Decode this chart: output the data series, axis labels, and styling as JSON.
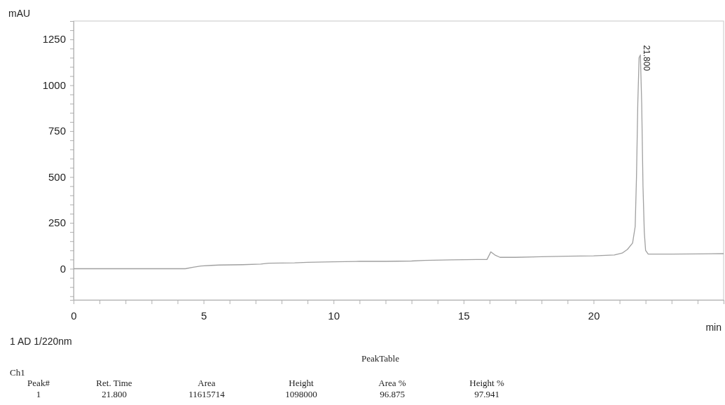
{
  "chart_data": {
    "type": "line",
    "xlabel": "min",
    "ylabel": "mAU",
    "xlim": [
      0,
      25
    ],
    "ylim": [
      -170,
      1350
    ],
    "xticks": [
      0,
      {
        "value": 1,
        "label": null
      },
      {
        "value": 2,
        "label": null
      },
      {
        "value": 3,
        "label": null
      },
      {
        "value": 4,
        "label": null
      },
      5,
      {
        "value": 6,
        "label": null
      },
      {
        "value": 7,
        "label": null
      },
      {
        "value": 8,
        "label": null
      },
      {
        "value": 9,
        "label": null
      },
      10,
      {
        "value": 11,
        "label": null
      },
      {
        "value": 12,
        "label": null
      },
      {
        "value": 13,
        "label": null
      },
      {
        "value": 14,
        "label": null
      },
      15,
      {
        "value": 16,
        "label": null
      },
      {
        "value": 17,
        "label": null
      },
      {
        "value": 18,
        "label": null
      },
      {
        "value": 19,
        "label": null
      },
      20,
      {
        "value": 21,
        "label": null
      },
      {
        "value": 22,
        "label": null
      },
      {
        "value": 23,
        "label": null
      },
      {
        "value": 24,
        "label": null
      },
      {
        "value": 25,
        "label": null
      }
    ],
    "yticks": [
      {
        "value": -150,
        "label": null
      },
      {
        "value": -100,
        "label": null
      },
      {
        "value": -50,
        "label": null
      },
      0,
      {
        "value": 50,
        "label": null
      },
      {
        "value": 100,
        "label": null
      },
      {
        "value": 150,
        "label": null
      },
      {
        "value": 200,
        "label": null
      },
      250,
      {
        "value": 300,
        "label": null
      },
      {
        "value": 350,
        "label": null
      },
      {
        "value": 400,
        "label": null
      },
      {
        "value": 450,
        "label": null
      },
      500,
      {
        "value": 550,
        "label": null
      },
      {
        "value": 600,
        "label": null
      },
      {
        "value": 650,
        "label": null
      },
      {
        "value": 700,
        "label": null
      },
      750,
      {
        "value": 800,
        "label": null
      },
      {
        "value": 850,
        "label": null
      },
      {
        "value": 900,
        "label": null
      },
      {
        "value": 950,
        "label": null
      },
      1000,
      {
        "value": 1050,
        "label": null
      },
      {
        "value": 1100,
        "label": null
      },
      {
        "value": 1150,
        "label": null
      },
      {
        "value": 1200,
        "label": null
      },
      1250,
      {
        "value": 1300,
        "label": null
      }
    ],
    "grid": false,
    "marker": "none",
    "line_style": "solid",
    "series": [
      {
        "color": "#a0a0a0",
        "x": [
          0,
          2,
          4,
          4.3,
          4.6,
          4.9,
          5.3,
          5.6,
          6.5,
          7.2,
          7.5,
          8.5,
          9,
          10,
          11,
          12,
          13,
          13.5,
          14.5,
          15.5,
          15.9,
          16.05,
          16.2,
          16.4,
          17,
          18,
          19,
          20,
          20.8,
          21.1,
          21.3,
          21.5,
          21.6,
          21.65,
          21.7,
          21.75,
          21.8,
          21.85,
          21.9,
          21.95,
          22,
          22.1,
          23,
          24,
          25
        ],
        "values": [
          0,
          0,
          0,
          0,
          8,
          15,
          18,
          20,
          22,
          25,
          30,
          32,
          35,
          38,
          40,
          40,
          42,
          45,
          48,
          50,
          50,
          92,
          75,
          62,
          62,
          65,
          68,
          70,
          75,
          85,
          105,
          140,
          230,
          500,
          900,
          1150,
          1165,
          900,
          450,
          200,
          100,
          80,
          80,
          81,
          82
        ]
      }
    ],
    "annotations": [
      {
        "text": "21.800",
        "x": 21.8,
        "y": 1165
      },
      "1 AD 1/220nm",
      "PeakTable",
      "Ch1",
      "Peak#",
      "Ret. Time",
      "Area",
      "Height",
      "Area %",
      "Height %",
      "1",
      "21.800",
      "11615714",
      "1098000",
      "96.875",
      "97.941"
    ]
  }
}
